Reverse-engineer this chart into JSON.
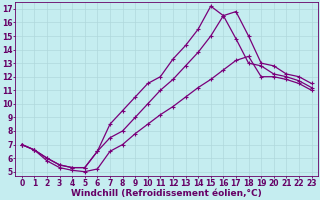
{
  "xlabel": "Windchill (Refroidissement éolien,°C)",
  "xlim": [
    -0.5,
    23.5
  ],
  "ylim": [
    4.7,
    17.5
  ],
  "xticks": [
    0,
    1,
    2,
    3,
    4,
    5,
    6,
    7,
    8,
    9,
    10,
    11,
    12,
    13,
    14,
    15,
    16,
    17,
    18,
    19,
    20,
    21,
    22,
    23
  ],
  "yticks": [
    5,
    6,
    7,
    8,
    9,
    10,
    11,
    12,
    13,
    14,
    15,
    16,
    17
  ],
  "line_color": "#7a007a",
  "bg_color": "#c5edf0",
  "grid_color": "#b0d8dc",
  "lines": [
    {
      "x": [
        0,
        1,
        2,
        3,
        4,
        5,
        6,
        7,
        8,
        9,
        10,
        11,
        12,
        13,
        14,
        15,
        16,
        17,
        18,
        19,
        20,
        21,
        22,
        23
      ],
      "y": [
        7.0,
        6.6,
        6.0,
        5.5,
        5.3,
        5.3,
        6.5,
        8.5,
        9.5,
        10.5,
        11.5,
        12.0,
        13.3,
        14.3,
        15.5,
        17.2,
        16.5,
        14.8,
        13.0,
        12.8,
        12.2,
        12.0,
        11.7,
        11.2
      ]
    },
    {
      "x": [
        0,
        1,
        2,
        3,
        4,
        5,
        6,
        7,
        8,
        9,
        10,
        11,
        12,
        13,
        14,
        15,
        16,
        17,
        18,
        19,
        20,
        21,
        22,
        23
      ],
      "y": [
        7.0,
        6.6,
        6.0,
        5.5,
        5.3,
        5.3,
        6.5,
        7.5,
        8.0,
        9.0,
        10.0,
        11.0,
        11.8,
        12.8,
        13.8,
        15.0,
        16.5,
        16.8,
        15.0,
        13.0,
        12.8,
        12.2,
        12.0,
        11.5
      ]
    },
    {
      "x": [
        0,
        1,
        2,
        3,
        4,
        5,
        6,
        7,
        8,
        9,
        10,
        11,
        12,
        13,
        14,
        15,
        16,
        17,
        18,
        19,
        20,
        21,
        22,
        23
      ],
      "y": [
        7.0,
        6.6,
        5.8,
        5.3,
        5.1,
        5.0,
        5.2,
        6.5,
        7.0,
        7.8,
        8.5,
        9.2,
        9.8,
        10.5,
        11.2,
        11.8,
        12.5,
        13.2,
        13.5,
        12.0,
        12.0,
        11.8,
        11.5,
        11.0
      ]
    }
  ],
  "linewidth": 0.9,
  "markersize": 3,
  "tick_fontsize": 5.5,
  "xlabel_fontsize": 6.5,
  "font_color": "#660066"
}
